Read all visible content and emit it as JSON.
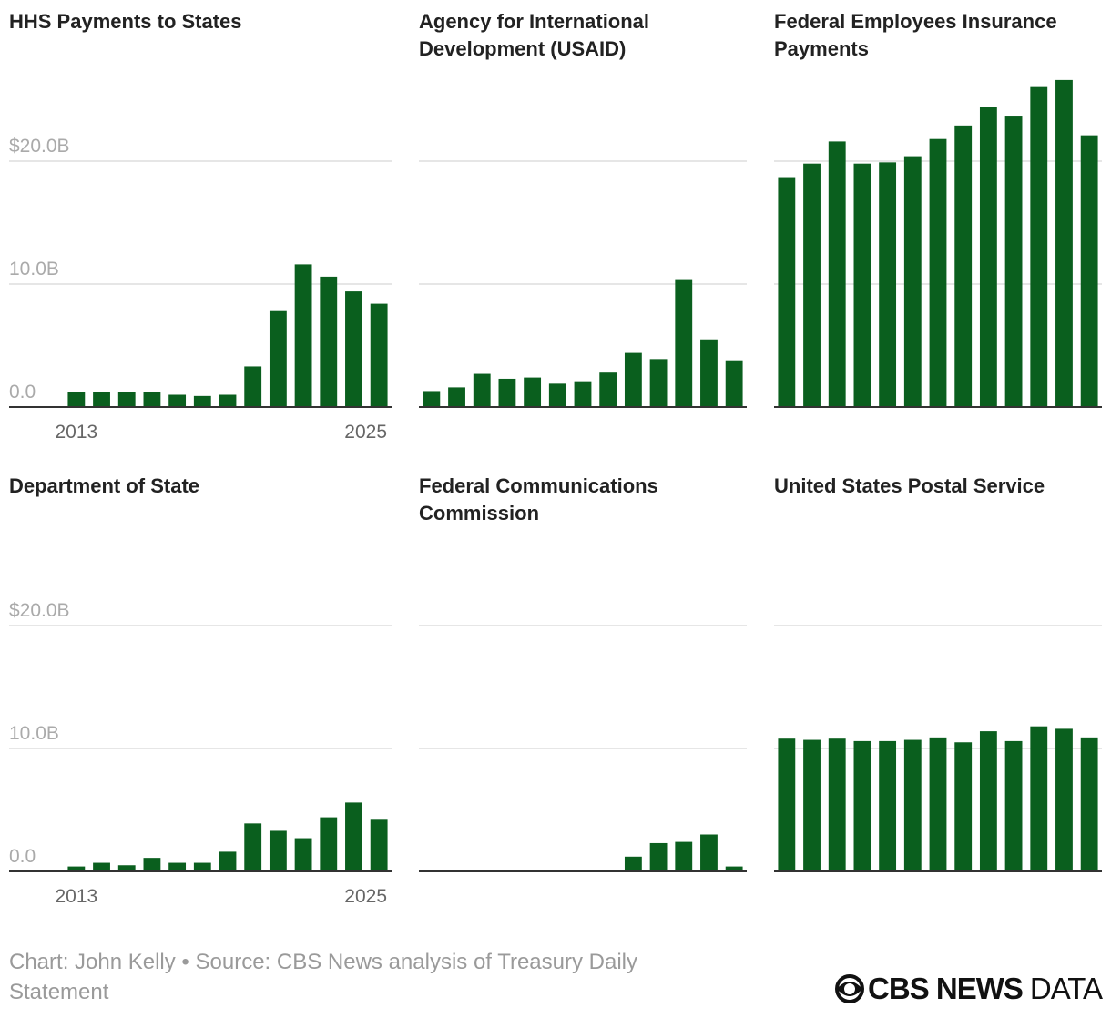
{
  "chart_data": [
    {
      "type": "bar",
      "title": "HHS Payments to States",
      "color": "#0a5f1e",
      "categories": [
        "2013",
        null,
        null,
        null,
        null,
        null,
        null,
        null,
        null,
        null,
        null,
        null,
        "2025"
      ],
      "values": [
        1.2,
        1.2,
        1.2,
        1.2,
        1.0,
        0.9,
        1.0,
        3.3,
        7.8,
        11.6,
        10.6,
        9.4,
        8.4
      ],
      "ylim": [
        0,
        27
      ],
      "yticks": [
        {
          "value": 0,
          "label": "0.0"
        },
        {
          "value": 10,
          "label": "10.0B"
        },
        {
          "value": 20,
          "label": "$20.0B"
        }
      ],
      "show_ytick_labels": true,
      "grid": true
    },
    {
      "type": "bar",
      "title": "Agency for International Development (USAID)",
      "color": "#0a5f1e",
      "categories": [
        null,
        null,
        null,
        null,
        null,
        null,
        null,
        null,
        null,
        null,
        null,
        null,
        null
      ],
      "values": [
        1.3,
        1.6,
        2.7,
        2.3,
        2.4,
        1.9,
        2.1,
        2.8,
        4.4,
        3.9,
        10.4,
        5.5,
        3.8
      ],
      "ylim": [
        0,
        27
      ],
      "yticks": [
        0,
        10,
        20
      ],
      "show_ytick_labels": false,
      "grid": true
    },
    {
      "type": "bar",
      "title": "Federal Employees Insurance Payments",
      "color": "#0a5f1e",
      "categories": [
        null,
        null,
        null,
        null,
        null,
        null,
        null,
        null,
        null,
        null,
        null,
        null,
        null
      ],
      "values": [
        18.7,
        19.8,
        21.6,
        19.8,
        19.9,
        20.4,
        21.8,
        22.9,
        24.4,
        23.7,
        26.1,
        26.6,
        22.1
      ],
      "ylim": [
        0,
        27
      ],
      "yticks": [
        0,
        10,
        20
      ],
      "show_ytick_labels": false,
      "grid": true
    },
    {
      "type": "bar",
      "title": "Department of State",
      "color": "#0a5f1e",
      "categories": [
        "2013",
        null,
        null,
        null,
        null,
        null,
        null,
        null,
        null,
        null,
        null,
        null,
        "2025"
      ],
      "values": [
        0.4,
        0.7,
        0.5,
        1.1,
        0.7,
        0.7,
        1.6,
        3.9,
        3.3,
        2.7,
        4.4,
        5.6,
        4.2
      ],
      "ylim": [
        0,
        27
      ],
      "yticks": [
        {
          "value": 0,
          "label": "0.0"
        },
        {
          "value": 10,
          "label": "10.0B"
        },
        {
          "value": 20,
          "label": "$20.0B"
        }
      ],
      "show_ytick_labels": true,
      "grid": true
    },
    {
      "type": "bar",
      "title": "Federal Communications Commission",
      "color": "#0a5f1e",
      "categories": [
        null,
        null,
        null,
        null,
        null,
        null,
        null,
        null,
        null,
        null,
        null,
        null,
        null
      ],
      "values": [
        0,
        0,
        0,
        0,
        0,
        0,
        0,
        0,
        1.2,
        2.3,
        2.4,
        3.0,
        0.4
      ],
      "ylim": [
        0,
        27
      ],
      "yticks": [
        0,
        10,
        20
      ],
      "show_ytick_labels": false,
      "grid": true
    },
    {
      "type": "bar",
      "title": "United States Postal Service",
      "color": "#0a5f1e",
      "categories": [
        null,
        null,
        null,
        null,
        null,
        null,
        null,
        null,
        null,
        null,
        null,
        null,
        null
      ],
      "values": [
        10.8,
        10.7,
        10.8,
        10.6,
        10.6,
        10.7,
        10.9,
        10.5,
        11.4,
        10.6,
        11.8,
        11.6,
        10.9
      ],
      "ylim": [
        0,
        27
      ],
      "yticks": [
        0,
        10,
        20
      ],
      "show_ytick_labels": false,
      "grid": true
    }
  ],
  "footer": {
    "credit": "Chart: John Kelly • Source: CBS News analysis of Treasury Daily Statement",
    "brand": "CBS NEWS",
    "suffix": "DATA"
  }
}
